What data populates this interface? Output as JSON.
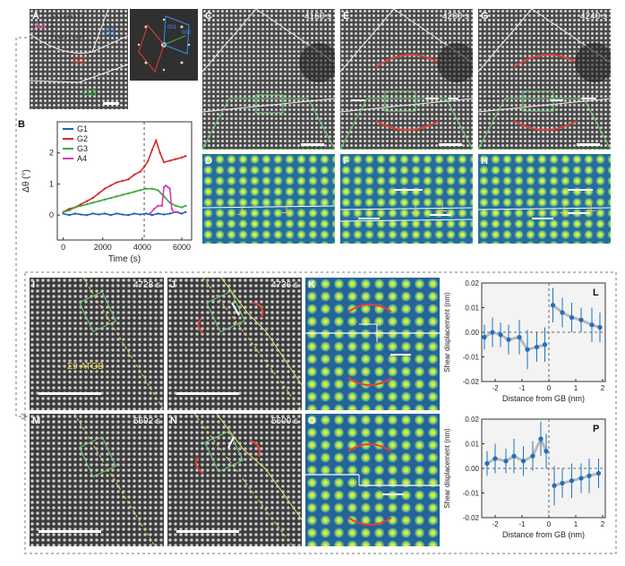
{
  "panels": {
    "A": {
      "label": "A",
      "regions": [
        "A4",
        "G1",
        "G2",
        "G3"
      ],
      "fft_labels": [
        "001",
        "002"
      ]
    },
    "C": {
      "label": "C",
      "time": "4160 s"
    },
    "E": {
      "label": "E",
      "time": "4200 s"
    },
    "G": {
      "label": "G",
      "time": "4240 s"
    },
    "D": {
      "label": "D"
    },
    "F": {
      "label": "F"
    },
    "H": {
      "label": "H"
    },
    "I": {
      "label": "I",
      "time": "4728 s",
      "gb_label": "Σ9 ATGB"
    },
    "J": {
      "label": "J",
      "time": "4736 s"
    },
    "K": {
      "label": "K"
    },
    "M": {
      "label": "M",
      "time": "5592 s"
    },
    "N": {
      "label": "N",
      "time": "5600 s"
    },
    "O": {
      "label": "O"
    }
  },
  "chart_data": [
    {
      "panel": "B",
      "type": "line",
      "ylabel": "Δθ (°)",
      "xlabel": "Time (s)",
      "xlim": [
        -300,
        6500
      ],
      "ylim": [
        -0.8,
        3.0
      ],
      "xticks": [
        0,
        2000,
        4000,
        6000
      ],
      "yticks": [
        0,
        1,
        2
      ],
      "vline": 4100,
      "legend": [
        "G1",
        "G2",
        "G3",
        "A4"
      ],
      "colors": [
        "#1f5fb8",
        "#d62728",
        "#3aa83a",
        "#d63bb5"
      ],
      "series": [
        {
          "name": "G1",
          "x": [
            0,
            300,
            600,
            900,
            1200,
            1500,
            1800,
            2100,
            2400,
            2700,
            3000,
            3300,
            3600,
            3900,
            4200,
            4500,
            4800,
            5100,
            5400,
            5700,
            6000,
            6200
          ],
          "y": [
            0.05,
            0.0,
            0.05,
            0.02,
            0.0,
            0.05,
            0.02,
            0.05,
            0.0,
            0.05,
            0.02,
            0.0,
            0.05,
            0.02,
            0.05,
            0.0,
            0.05,
            0.02,
            0.05,
            0.1,
            0.05,
            0.1
          ]
        },
        {
          "name": "G2",
          "x": [
            0,
            300,
            600,
            900,
            1200,
            1500,
            1800,
            2100,
            2400,
            2700,
            3000,
            3300,
            3600,
            3900,
            4100,
            4300,
            4500,
            4700,
            4900,
            5100,
            5400,
            5700,
            6000,
            6200
          ],
          "y": [
            0.1,
            0.2,
            0.25,
            0.35,
            0.45,
            0.55,
            0.7,
            0.85,
            0.95,
            1.05,
            1.1,
            1.15,
            1.3,
            1.4,
            1.55,
            1.75,
            2.1,
            2.4,
            2.0,
            1.7,
            1.75,
            1.8,
            1.85,
            1.9
          ]
        },
        {
          "name": "G3",
          "x": [
            0,
            300,
            600,
            900,
            1200,
            1500,
            1800,
            2100,
            2400,
            2700,
            3000,
            3300,
            3600,
            3900,
            4200,
            4500,
            4800,
            5100,
            5400,
            5700,
            6000,
            6200
          ],
          "y": [
            0.1,
            0.15,
            0.25,
            0.3,
            0.35,
            0.4,
            0.45,
            0.5,
            0.55,
            0.6,
            0.65,
            0.7,
            0.75,
            0.8,
            0.85,
            0.85,
            0.8,
            0.6,
            0.4,
            0.3,
            0.25,
            0.3
          ]
        },
        {
          "name": "A4",
          "x": [
            4400,
            4600,
            4800,
            5000,
            5100,
            5200,
            5300,
            5400,
            5500,
            5600,
            5800
          ],
          "y": [
            0.05,
            0.2,
            0.3,
            0.3,
            0.9,
            0.95,
            0.9,
            0.85,
            0.2,
            0.1,
            0.1
          ]
        }
      ]
    },
    {
      "panel": "L",
      "label": "L",
      "type": "scatter",
      "ylabel": "Shear displacement (nm)",
      "xlabel": "Distance from GB (nm)",
      "xlim": [
        -2.5,
        2.1
      ],
      "ylim": [
        -0.02,
        0.02
      ],
      "xticks": [
        -2,
        -1,
        0,
        1,
        2
      ],
      "yticks": [
        -0.02,
        -0.01,
        0.0,
        0.01,
        0.02
      ],
      "ytick_labels": [
        "-0.02",
        "-0.01",
        "0.00",
        "0.01",
        "0.02"
      ],
      "points_x": [
        -2.4,
        -2.1,
        -1.8,
        -1.5,
        -1.1,
        -0.8,
        -0.45,
        -0.15,
        0.15,
        0.5,
        0.85,
        1.2,
        1.6,
        1.9
      ],
      "points_y": [
        -0.002,
        0.0,
        -0.001,
        -0.003,
        -0.002,
        -0.007,
        -0.006,
        -0.005,
        0.011,
        0.008,
        0.006,
        0.005,
        0.003,
        0.002
      ],
      "errors": [
        0.005,
        0.006,
        0.005,
        0.006,
        0.007,
        0.008,
        0.006,
        0.007,
        0.007,
        0.006,
        0.006,
        0.005,
        0.007,
        0.006
      ]
    },
    {
      "panel": "P",
      "label": "P",
      "type": "scatter",
      "ylabel": "Shear displacement (nm)",
      "xlabel": "Distance from GB (nm)",
      "xlim": [
        -2.5,
        2.1
      ],
      "ylim": [
        -0.02,
        0.02
      ],
      "xticks": [
        -2,
        -1,
        0,
        1,
        2
      ],
      "yticks": [
        -0.02,
        -0.01,
        0.0,
        0.01,
        0.02
      ],
      "ytick_labels": [
        "-0.02",
        "-0.01",
        "0.00",
        "0.01",
        "0.02"
      ],
      "points_x": [
        -2.3,
        -2.0,
        -1.6,
        -1.3,
        -0.95,
        -0.6,
        -0.3,
        -0.1,
        0.2,
        0.5,
        0.85,
        1.2,
        1.5,
        1.85
      ],
      "points_y": [
        0.002,
        0.004,
        0.003,
        0.005,
        0.003,
        0.005,
        0.012,
        0.007,
        -0.007,
        -0.006,
        -0.005,
        -0.004,
        -0.003,
        -0.002
      ],
      "errors": [
        0.005,
        0.006,
        0.005,
        0.007,
        0.006,
        0.006,
        0.007,
        0.007,
        0.008,
        0.006,
        0.007,
        0.006,
        0.007,
        0.006
      ]
    }
  ]
}
